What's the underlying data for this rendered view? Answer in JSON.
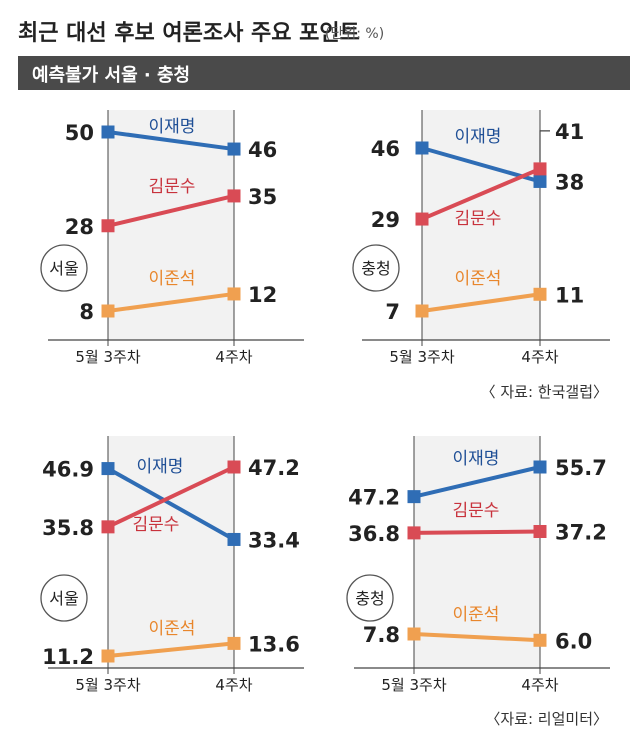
{
  "header": {
    "title": "최근 대선 후보 여론조사 주요 포인트",
    "unit": "(단위: %)",
    "banner": "예측불가 서울 · 충청"
  },
  "colors": {
    "lee": "#2f6db5",
    "kim": "#d94b55",
    "lee_jun": "#f0a050",
    "lee_label": "#1f4f96",
    "kim_label": "#c8323c",
    "lee_jun_label": "#e8862c"
  },
  "sources": {
    "top": "〈 자료: 한국갤럽〉",
    "bottom": "〈자료: 리얼미터〉"
  },
  "chart_data": [
    {
      "type": "line",
      "region": "서울",
      "categories": [
        "5월 3주차",
        "4주차"
      ],
      "series": [
        {
          "name": "이재명",
          "values": [
            50,
            46
          ]
        },
        {
          "name": "김문수",
          "values": [
            28,
            35
          ]
        },
        {
          "name": "이준석",
          "values": [
            8,
            12
          ]
        }
      ]
    },
    {
      "type": "line",
      "region": "충청",
      "categories": [
        "5월 3주차",
        "4주차"
      ],
      "series": [
        {
          "name": "이재명",
          "values": [
            46,
            38
          ]
        },
        {
          "name": "김문수",
          "values": [
            29,
            41
          ]
        },
        {
          "name": "이준석",
          "values": [
            7,
            11
          ]
        }
      ]
    },
    {
      "type": "line",
      "region": "서울",
      "categories": [
        "5월 3주차",
        "4주차"
      ],
      "series": [
        {
          "name": "이재명",
          "values": [
            46.9,
            33.4
          ]
        },
        {
          "name": "김문수",
          "values": [
            35.8,
            47.2
          ]
        },
        {
          "name": "이준석",
          "values": [
            11.2,
            13.6
          ]
        }
      ]
    },
    {
      "type": "line",
      "region": "충청",
      "categories": [
        "5월 3주차",
        "4주차"
      ],
      "series": [
        {
          "name": "이재명",
          "values": [
            47.2,
            55.7
          ]
        },
        {
          "name": "김문수",
          "values": [
            36.8,
            37.2
          ]
        },
        {
          "name": "이준석",
          "values": [
            7.8,
            6.0
          ]
        }
      ]
    }
  ]
}
